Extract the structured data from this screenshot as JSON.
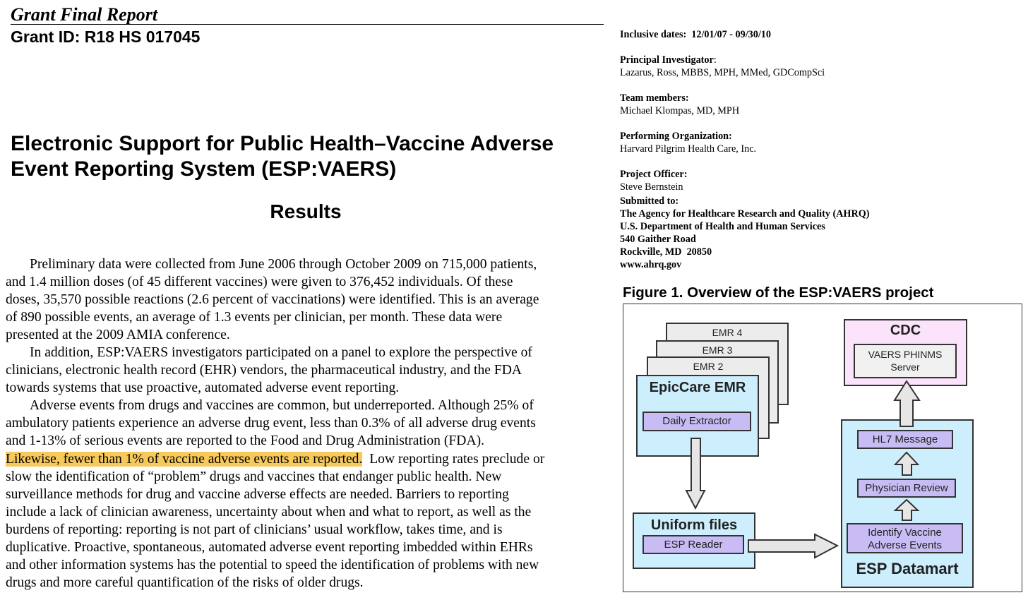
{
  "header": {
    "title": "Grant Final Report",
    "grant_id": "Grant ID: R18 HS 017045"
  },
  "report_title_lines": [
    "Electronic Support for Public Health–Vaccine Adverse",
    "Event Reporting System (ESP:VAERS)"
  ],
  "results_heading": "Results",
  "body_lines": [
    "Preliminary data were collected from June 2006 through October 2009 on 715,000 patients,",
    "and 1.4 million doses (of 45 different vaccines) were given to 376,452 individuals.  Of these",
    "doses, 35,570 possible reactions (2.6 percent of vaccinations) were identified.  This is an average",
    "of 890 possible events, an average of 1.3 events per clinician, per month.  These data were",
    "presented at the 2009 AMIA conference.",
    "In addition, ESP:VAERS investigators participated on a panel to explore the perspective of",
    "clinicians, electronic health record (EHR) vendors, the pharmaceutical industry, and the FDA",
    "towards systems that use proactive, automated adverse event reporting.",
    "Adverse events from drugs and vaccines are common, but underreported.  Although 25% of",
    "ambulatory patients experience an adverse drug event, less than 0.3% of all adverse drug events",
    "and 1-13% of serious events are reported to the Food and Drug Administration (FDA).",
    "",
    "slow the identification of “problem” drugs and vaccines that endanger public health.  New",
    "surveillance methods for drug and vaccine adverse effects are needed.  Barriers to reporting",
    "include a lack of clinician awareness, uncertainty about when and what to report, as well as the",
    "burdens of reporting: reporting is not part of clinicians’ usual workflow, takes time, and is",
    "duplicative.  Proactive, spontaneous, automated adverse event reporting imbedded within EHRs",
    "and other information systems has the potential to speed the identification of problems with new",
    "drugs and more careful quantification of the risks of older drugs."
  ],
  "highlighted_line": {
    "highlight": "Likewise, fewer than 1% of vaccine adverse events are reported.",
    "rest": "  Low reporting rates preclude or",
    "highlight_color": "#f7c95a"
  },
  "meta": {
    "inclusive_dates": "Inclusive dates:  12/01/07 - 09/30/10",
    "pi_label": "Principal Investigator",
    "pi_colon": ":",
    "pi": "Lazarus, Ross, MBBS, MPH, MMed, GDCompSci",
    "team_label": "Team members:",
    "team": "Michael Klompas, MD, MPH",
    "org_label": "Performing Organization:",
    "org": "Harvard Pilgrim Health Care, Inc.",
    "officer_label": "Project Officer:",
    "officer": "Steve Bernstein",
    "submitted_label": "Submitted to:",
    "submitted_lines": [
      "The Agency for Healthcare Research and Quality (AHRQ)",
      "U.S. Department of Health and Human Services",
      "540 Gaither Road",
      "Rockville, MD  20850",
      "www.ahrq.gov"
    ]
  },
  "figure": {
    "caption": "Figure 1. Overview of the ESP:VAERS project",
    "emr4": "EMR 4",
    "emr3": "EMR 3",
    "emr2": "EMR 2",
    "epiccare": "EpicCare EMR",
    "daily_extractor": "Daily Extractor",
    "uniform_files": "Uniform files",
    "esp_reader": "ESP Reader",
    "cdc": "CDC",
    "vaers_server_1": "VAERS PHINMS",
    "vaers_server_2": "Server",
    "hl7": "HL7 Message",
    "physician_review": "Physician Review",
    "identify_1": "Identify Vaccine",
    "identify_2": "Adverse Events",
    "datamart": "ESP Datamart",
    "colors": {
      "blue": "#cdeefc",
      "purple": "#c9bcf5",
      "pink": "#fbe3fb",
      "gray": "#ececec"
    }
  }
}
